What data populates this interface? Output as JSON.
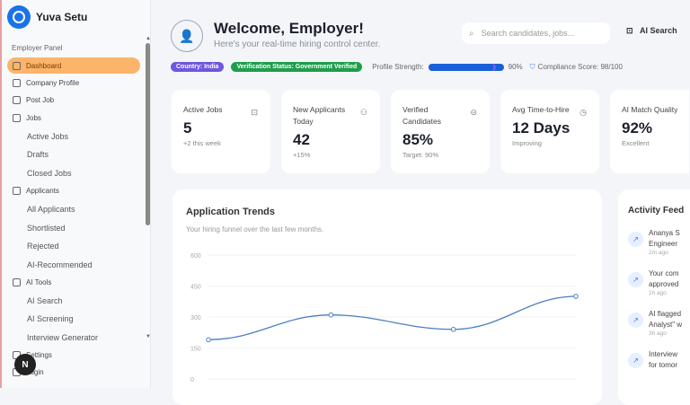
{
  "sidebar": {
    "brand": "Yuva Setu",
    "panel_label": "Employer Panel",
    "items": [
      {
        "label": "Dashboard",
        "active": true
      },
      {
        "label": "Company Profile"
      },
      {
        "label": "Post Job"
      },
      {
        "label": "Jobs"
      }
    ],
    "jobs_sub": [
      "Active Jobs",
      "Drafts",
      "Closed Jobs"
    ],
    "applicants": "Applicants",
    "applicants_sub": [
      "All Applicants",
      "Shortlisted",
      "Rejected",
      "AI-Recommended"
    ],
    "ai_tools": "AI Tools",
    "ai_sub": [
      "AI Search",
      "AI Screening",
      "Interview Generator"
    ],
    "settings": "Settings",
    "login": "Login",
    "badge": "N"
  },
  "header": {
    "title": "Welcome, Employer!",
    "subtitle": "Here's your real-time hiring control center.",
    "search_placeholder": "Search candidates, jobs...",
    "ai_search": "AI Search"
  },
  "badges": {
    "country": "Country: India",
    "verification": "Verification Status: Government Verified",
    "profile_label": "Profile Strength:",
    "profile_value": "90%",
    "profile_fraction": 0.9,
    "compliance": "Compliance Score: 98/100"
  },
  "colors": {
    "accent": "#fbb46a",
    "country": "#6e56e0",
    "verified": "#1e9e4a",
    "progress": "#1a5fd8",
    "line": "#4a7fc1"
  },
  "stats": [
    {
      "label": "Active Jobs",
      "value": "5",
      "note": "+2 this week",
      "icon": "briefcase-icon"
    },
    {
      "label": "New Applicants Today",
      "value": "42",
      "note": "+15%",
      "icon": "users-icon"
    },
    {
      "label": "Verified Candidates",
      "value": "85%",
      "note": "Target: 90%",
      "icon": "check-circle-icon"
    },
    {
      "label": "Avg Time-to-Hire",
      "value": "12 Days",
      "note": "Improving",
      "icon": "clock-icon"
    },
    {
      "label": "AI Match Quality",
      "value": "92%",
      "note": "Excellent",
      "icon": "sparkle-icon"
    }
  ],
  "chart_data": {
    "type": "line",
    "title": "Application Trends",
    "subtitle": "Your hiring funnel over the last few months.",
    "yticks": [
      600,
      450,
      300,
      150,
      0
    ],
    "ylim": [
      0,
      600
    ],
    "grid": true,
    "series": [
      {
        "values": [
          190,
          310,
          240,
          400
        ]
      }
    ]
  },
  "feed": {
    "title": "Activity Feed",
    "items": [
      {
        "line1": "Ananya S",
        "line2": "Engineer",
        "time": "2m ago"
      },
      {
        "line1": "Your com",
        "line2": "approved",
        "time": "1h ago"
      },
      {
        "line1": "AI flagged",
        "line2": "Analyst\" w",
        "time": "3h ago"
      },
      {
        "line1": "Interview",
        "line2": "for tomor",
        "time": ""
      }
    ]
  }
}
